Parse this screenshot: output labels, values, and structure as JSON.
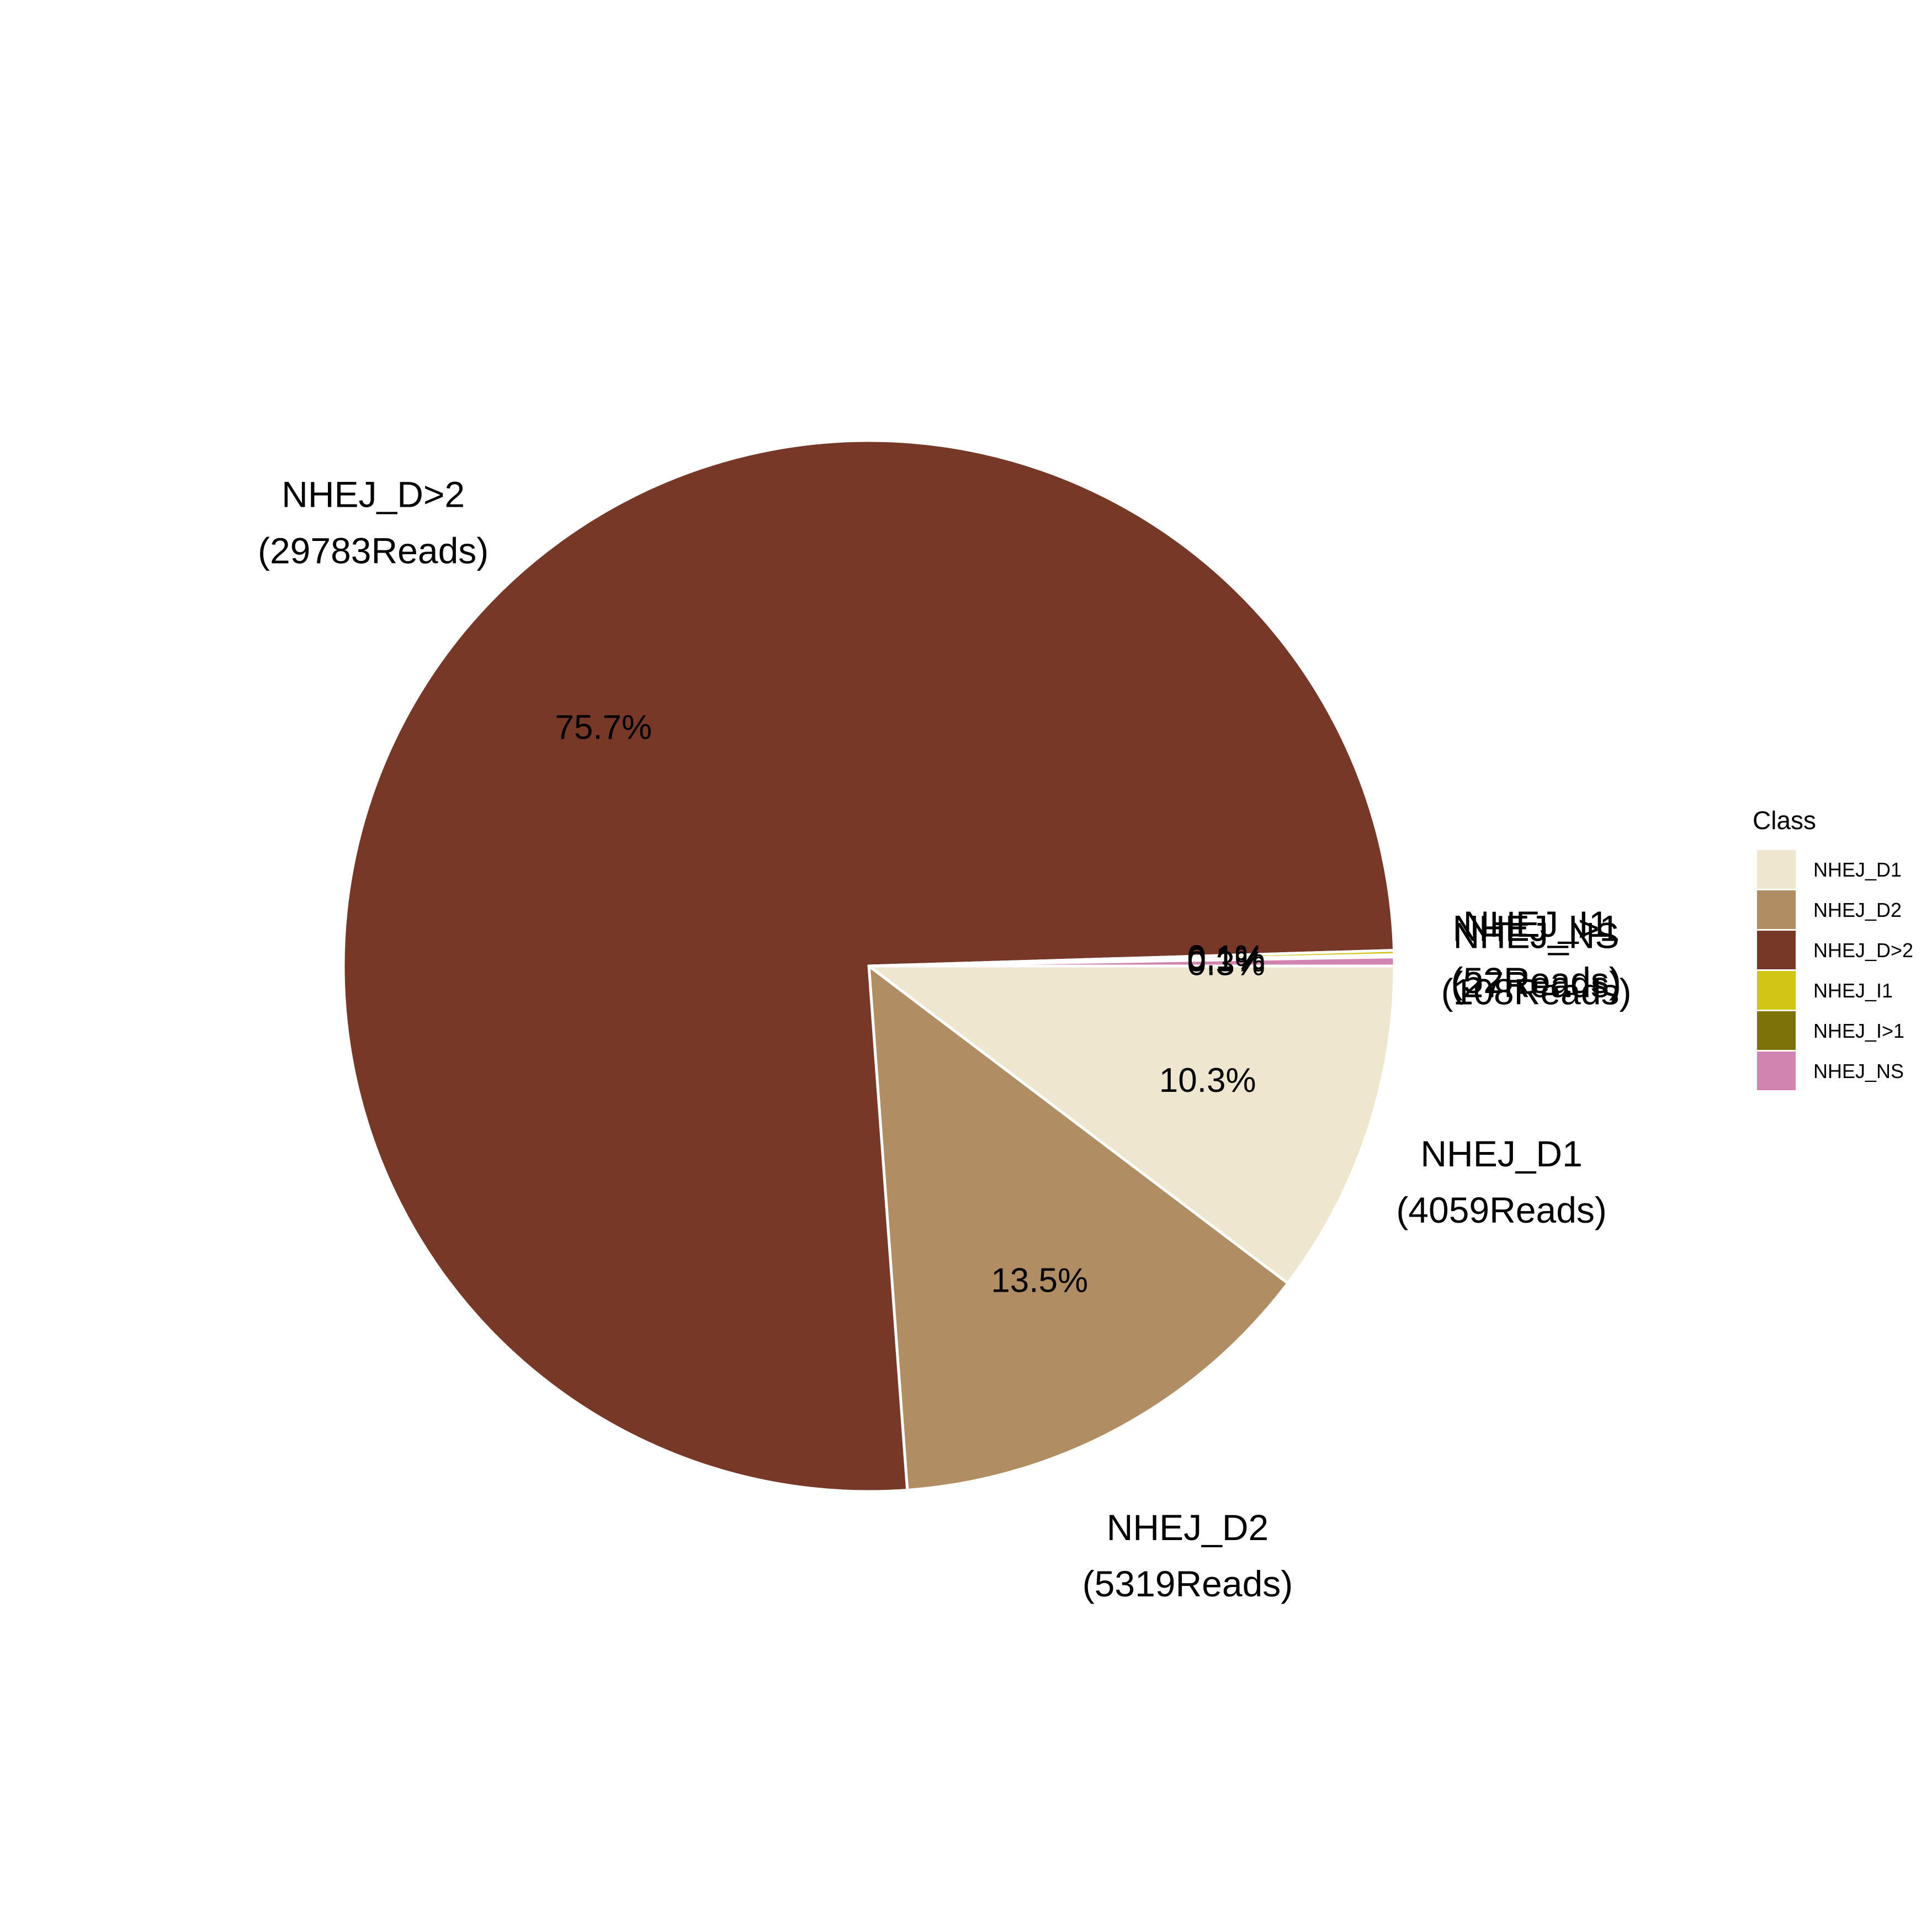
{
  "chart_data": {
    "type": "pie",
    "title": "",
    "legend": {
      "title": "Class",
      "placement": "right",
      "entries": [
        "NHEJ_D1",
        "NHEJ_D2",
        "NHEJ_D>2",
        "NHEJ_I1",
        "NHEJ_I>1",
        "NHEJ_NS"
      ]
    },
    "slices": [
      {
        "category": "NHEJ_D1",
        "reads": 4059,
        "percent": 10.3,
        "percent_label": "10.3%",
        "name_label": "NHEJ_D1",
        "reads_label": "(4059Reads)",
        "color": "#EEE6CF"
      },
      {
        "category": "NHEJ_D2",
        "reads": 5319,
        "percent": 13.5,
        "percent_label": "13.5%",
        "name_label": "NHEJ_D2",
        "reads_label": "(5319Reads)",
        "color": "#B18D63"
      },
      {
        "category": "NHEJ_D>2",
        "reads": 29783,
        "percent": 75.7,
        "percent_label": "75.7%",
        "name_label": "NHEJ_D>2",
        "reads_label": "(29783Reads)",
        "color": "#773828"
      },
      {
        "category": "NHEJ_I1",
        "reads": 52,
        "percent": 0.1,
        "percent_label": "0.1%",
        "name_label": "NHEJ_I1",
        "reads_label": "(52Reads)",
        "color": "#D2C516"
      },
      {
        "category": "NHEJ_I>1",
        "reads": 27,
        "percent": 0.1,
        "percent_label": "0.1%",
        "name_label": "NHEJ_I>1",
        "reads_label": "(27Reads)",
        "color": "#7C720A"
      },
      {
        "category": "NHEJ_NS",
        "reads": 108,
        "percent": 0.3,
        "percent_label": "0.3%",
        "name_label": "NHEJ_NS",
        "reads_label": "(108Reads)",
        "color": "#D184AF"
      }
    ],
    "slice_border_color": "#ffffff"
  }
}
